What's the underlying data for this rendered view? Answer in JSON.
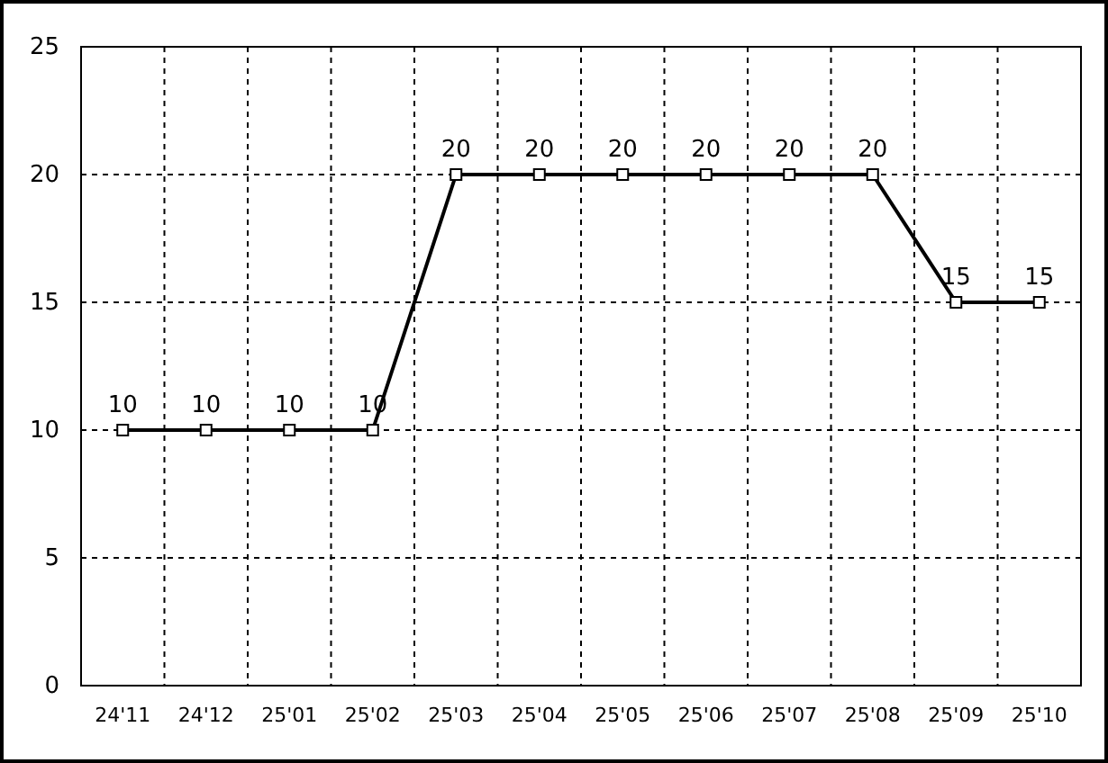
{
  "chart_data": {
    "type": "line",
    "categories": [
      "24'11",
      "24'12",
      "25'01",
      "25'02",
      "25'03",
      "25'04",
      "25'05",
      "25'06",
      "25'07",
      "25'08",
      "25'09",
      "25'10"
    ],
    "series": [
      {
        "color": "#000000",
        "values": [
          10,
          10,
          10,
          10,
          20,
          20,
          20,
          20,
          20,
          20,
          15,
          15
        ]
      }
    ],
    "ylim": [
      0,
      25
    ],
    "yticks": [
      0,
      5,
      10,
      15,
      20,
      25
    ],
    "grid": true,
    "marker": "square",
    "line_style": "solid",
    "data_labels": true
  }
}
